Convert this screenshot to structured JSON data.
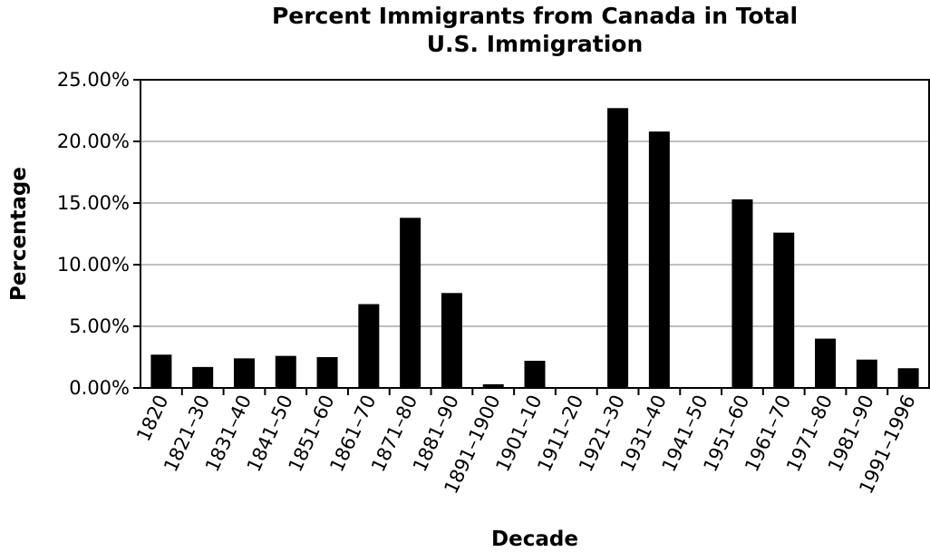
{
  "chart_data": {
    "type": "bar",
    "title_line1": "Percent Immigrants from Canada in Total",
    "title_line2": "U.S. Immigration",
    "xlabel": "Decade",
    "ylabel": "Percentage",
    "ylim": [
      0,
      25
    ],
    "yticks": [
      "0.00%",
      "5.00%",
      "10.00%",
      "15.00%",
      "20.00%",
      "25.00%"
    ],
    "grid": true,
    "categories": [
      "1820",
      "1821–30",
      "1831–40",
      "1841–50",
      "1851–60",
      "1861–70",
      "1871–80",
      "1881–90",
      "1891–1900",
      "1901–10",
      "1911–20",
      "1921–30",
      "1931–40",
      "1941–50",
      "1951–60",
      "1961–70",
      "1971–80",
      "1981–90",
      "1991–1996"
    ],
    "values": [
      2.7,
      1.7,
      2.4,
      2.6,
      2.5,
      6.8,
      13.8,
      7.7,
      0.3,
      2.2,
      0,
      22.7,
      20.8,
      0,
      15.3,
      12.6,
      4.0,
      2.3,
      1.6
    ],
    "bar_color": "#000000",
    "grid_color": "#aaaaaa"
  }
}
